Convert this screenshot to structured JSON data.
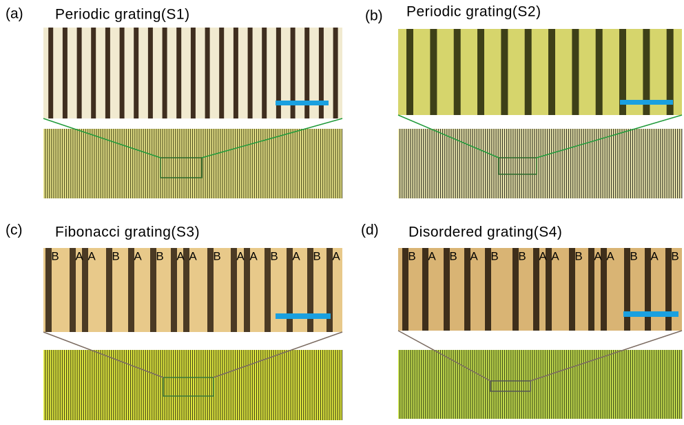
{
  "panels": [
    {
      "label": "(a)",
      "title": "Periodic grating(S1)"
    },
    {
      "label": "(b)",
      "title": "Periodic grating(S2)"
    },
    {
      "label": "(c)",
      "title": "Fibonacci grating(S3)",
      "letters": [
        "B",
        "A",
        "A",
        "B",
        "A",
        "B",
        "A",
        "A",
        "B",
        "A",
        "A",
        "B",
        "A",
        "B",
        "A"
      ]
    },
    {
      "label": "(d)",
      "title": "Disordered grating(S4)",
      "letters": [
        "B",
        "A",
        "B",
        "A",
        "B",
        "B",
        "A",
        "A",
        "B",
        "A",
        "A",
        "B",
        "A",
        "B"
      ]
    }
  ]
}
